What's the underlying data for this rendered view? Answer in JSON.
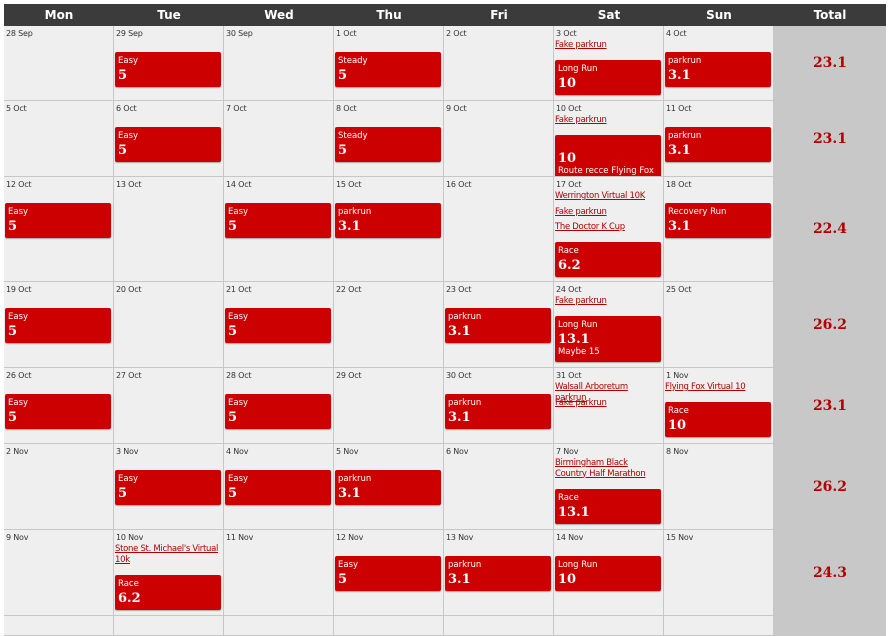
{
  "columns": [
    "Mon",
    "Tue",
    "Wed",
    "Thu",
    "Fri",
    "Sat",
    "Sun",
    "Total"
  ],
  "weeks": [
    {
      "total": "23.1",
      "days": [
        {
          "date": "28 Sep"
        },
        {
          "date": "29 Sep",
          "workouts": [
            {
              "title": "Easy",
              "distance": "5"
            }
          ]
        },
        {
          "date": "30 Sep"
        },
        {
          "date": "1 Oct",
          "workouts": [
            {
              "title": "Steady",
              "distance": "5"
            }
          ]
        },
        {
          "date": "2 Oct"
        },
        {
          "date": "3 Oct",
          "races": [
            "Fake parkrun"
          ],
          "workouts": [
            {
              "title": "Long Run",
              "distance": "10"
            }
          ]
        },
        {
          "date": "4 Oct",
          "workouts": [
            {
              "title": "parkrun",
              "distance": "3.1"
            }
          ]
        }
      ]
    },
    {
      "total": "23.1",
      "days": [
        {
          "date": "5 Oct"
        },
        {
          "date": "6 Oct",
          "workouts": [
            {
              "title": "Easy",
              "distance": "5"
            }
          ]
        },
        {
          "date": "7 Oct"
        },
        {
          "date": "8 Oct",
          "workouts": [
            {
              "title": "Steady",
              "distance": "5"
            }
          ]
        },
        {
          "date": "9 Oct"
        },
        {
          "date": "10 Oct",
          "races": [
            "Fake parkrun"
          ],
          "workouts": [
            {
              "title": "",
              "distance": "10",
              "note": "Route recce Flying Fox"
            }
          ]
        },
        {
          "date": "11 Oct",
          "workouts": [
            {
              "title": "parkrun",
              "distance": "3.1"
            }
          ]
        }
      ]
    },
    {
      "total": "22.4",
      "days": [
        {
          "date": "12 Oct",
          "workouts": [
            {
              "title": "Easy",
              "distance": "5"
            }
          ]
        },
        {
          "date": "13 Oct"
        },
        {
          "date": "14 Oct",
          "workouts": [
            {
              "title": "Easy",
              "distance": "5"
            }
          ]
        },
        {
          "date": "15 Oct",
          "workouts": [
            {
              "title": "parkrun",
              "distance": "3.1"
            }
          ]
        },
        {
          "date": "16 Oct"
        },
        {
          "date": "17 Oct",
          "races": [
            "Werrington Virtual 10K",
            "Fake parkrun",
            "The Doctor K Cup"
          ],
          "workouts": [
            {
              "title": "Race",
              "distance": "6.2"
            }
          ]
        },
        {
          "date": "18 Oct",
          "workouts": [
            {
              "title": "Recovery Run",
              "distance": "3.1"
            }
          ]
        }
      ]
    },
    {
      "total": "26.2",
      "days": [
        {
          "date": "19 Oct",
          "workouts": [
            {
              "title": "Easy",
              "distance": "5"
            }
          ]
        },
        {
          "date": "20 Oct"
        },
        {
          "date": "21 Oct",
          "workouts": [
            {
              "title": "Easy",
              "distance": "5"
            }
          ]
        },
        {
          "date": "22 Oct"
        },
        {
          "date": "23 Oct",
          "workouts": [
            {
              "title": "parkrun",
              "distance": "3.1"
            }
          ]
        },
        {
          "date": "24 Oct",
          "races": [
            "Fake parkrun"
          ],
          "workouts": [
            {
              "title": "Long Run",
              "distance": "13.1",
              "note": "Maybe 15"
            }
          ]
        },
        {
          "date": "25 Oct"
        }
      ]
    },
    {
      "total": "23.1",
      "days": [
        {
          "date": "26 Oct",
          "workouts": [
            {
              "title": "Easy",
              "distance": "5"
            }
          ]
        },
        {
          "date": "27 Oct"
        },
        {
          "date": "28 Oct",
          "workouts": [
            {
              "title": "Easy",
              "distance": "5"
            }
          ]
        },
        {
          "date": "29 Oct"
        },
        {
          "date": "30 Oct",
          "workouts": [
            {
              "title": "parkrun",
              "distance": "3.1"
            }
          ]
        },
        {
          "date": "31 Oct",
          "races": [
            "Walsall Arboretum parkrun",
            "Fake parkrun"
          ]
        },
        {
          "date": "1 Nov",
          "races": [
            "Flying Fox Virtual 10"
          ],
          "workouts": [
            {
              "title": "Race",
              "distance": "10"
            }
          ]
        }
      ]
    },
    {
      "total": "26.2",
      "days": [
        {
          "date": "2 Nov"
        },
        {
          "date": "3 Nov",
          "workouts": [
            {
              "title": "Easy",
              "distance": "5"
            }
          ]
        },
        {
          "date": "4 Nov",
          "workouts": [
            {
              "title": "Easy",
              "distance": "5"
            }
          ]
        },
        {
          "date": "5 Nov",
          "workouts": [
            {
              "title": "parkrun",
              "distance": "3.1"
            }
          ]
        },
        {
          "date": "6 Nov"
        },
        {
          "date": "7 Nov",
          "races": [
            "Birmingham Black Country Half Marathon"
          ],
          "workouts": [
            {
              "title": "Race",
              "distance": "13.1"
            }
          ]
        },
        {
          "date": "8 Nov"
        }
      ]
    },
    {
      "total": "24.3",
      "days": [
        {
          "date": "9 Nov"
        },
        {
          "date": "10 Nov",
          "races": [
            "Stone St. Michael's Virtual 10k"
          ],
          "workouts": [
            {
              "title": "Race",
              "distance": "6.2"
            }
          ]
        },
        {
          "date": "11 Nov"
        },
        {
          "date": "12 Nov",
          "workouts": [
            {
              "title": "Easy",
              "distance": "5"
            }
          ]
        },
        {
          "date": "13 Nov",
          "workouts": [
            {
              "title": "parkrun",
              "distance": "3.1"
            }
          ]
        },
        {
          "date": "14 Nov",
          "workouts": [
            {
              "title": "Long Run",
              "distance": "10"
            }
          ]
        },
        {
          "date": "15 Nov"
        }
      ]
    }
  ]
}
